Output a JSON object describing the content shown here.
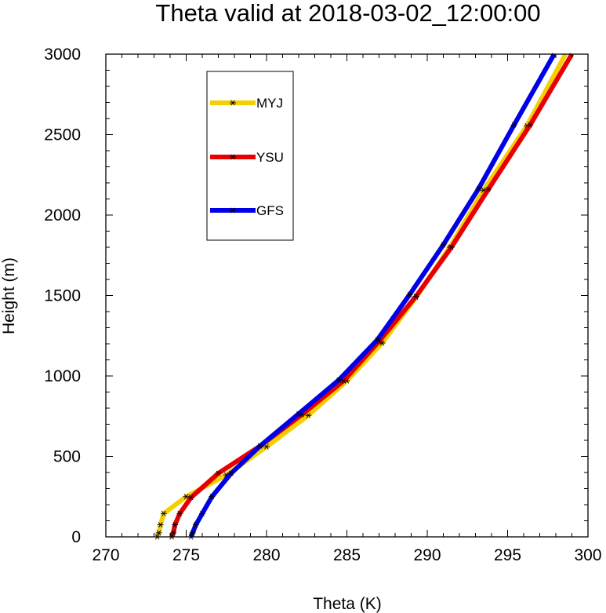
{
  "chart_data": {
    "type": "line",
    "title": "Theta valid at 2018-03-02_12:00:00",
    "xlabel": "Theta (K)",
    "ylabel": "Height (m)",
    "xlim": [
      270,
      300
    ],
    "ylim": [
      0,
      3000
    ],
    "xticks": [
      270,
      275,
      280,
      285,
      290,
      295,
      300
    ],
    "yticks": [
      0,
      500,
      1000,
      1500,
      2000,
      2500,
      3000
    ],
    "xtick_labels": [
      "270",
      "275",
      "280",
      "285",
      "290",
      "295",
      "300"
    ],
    "ytick_labels": [
      "0",
      "500",
      "1000",
      "1500",
      "2000",
      "2500",
      "3000"
    ],
    "grid": false,
    "legend_position": "top-left",
    "series": [
      {
        "name": "MYJ",
        "color": "#f5d000",
        "points": [
          [
            273.2,
            0
          ],
          [
            273.3,
            25
          ],
          [
            273.4,
            75
          ],
          [
            273.6,
            145
          ],
          [
            275.0,
            250
          ],
          [
            277.5,
            385
          ],
          [
            280.0,
            560
          ],
          [
            282.6,
            755
          ],
          [
            285.0,
            970
          ],
          [
            287.2,
            1205
          ],
          [
            289.3,
            1490
          ],
          [
            291.4,
            1800
          ],
          [
            293.5,
            2155
          ],
          [
            296.2,
            2555
          ],
          [
            298.6,
            3000
          ]
        ]
      },
      {
        "name": "YSU",
        "color": "#e80000",
        "points": [
          [
            274.1,
            0
          ],
          [
            274.2,
            25
          ],
          [
            274.3,
            75
          ],
          [
            274.6,
            145
          ],
          [
            275.3,
            245
          ],
          [
            277.0,
            395
          ],
          [
            279.6,
            565
          ],
          [
            282.2,
            760
          ],
          [
            284.8,
            970
          ],
          [
            287.0,
            1215
          ],
          [
            289.3,
            1495
          ],
          [
            291.5,
            1800
          ],
          [
            293.8,
            2160
          ],
          [
            296.4,
            2560
          ],
          [
            299.0,
            3000
          ]
        ]
      },
      {
        "name": "GFS",
        "color": "#0000e8",
        "points": [
          [
            275.3,
            0
          ],
          [
            275.4,
            25
          ],
          [
            275.6,
            75
          ],
          [
            276.0,
            145
          ],
          [
            276.6,
            250
          ],
          [
            277.8,
            395
          ],
          [
            279.6,
            565
          ],
          [
            282.0,
            765
          ],
          [
            284.5,
            975
          ],
          [
            286.9,
            1225
          ],
          [
            288.9,
            1505
          ],
          [
            291.0,
            1815
          ],
          [
            293.2,
            2165
          ],
          [
            295.4,
            2560
          ],
          [
            297.9,
            3000
          ]
        ]
      }
    ]
  }
}
